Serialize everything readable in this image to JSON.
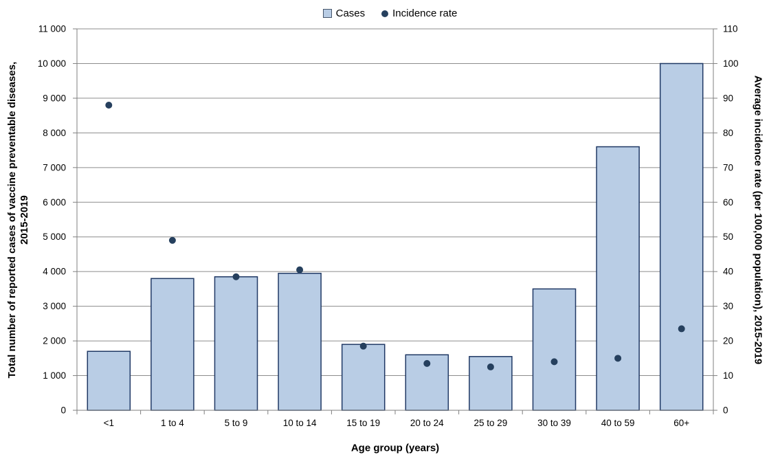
{
  "colors": {
    "background": "#ffffff",
    "bar_fill": "#b9cde5",
    "bar_border": "#1f3864",
    "dot": "#26405e",
    "gridline": "#8c8c8c",
    "axis": "#7f7f7f",
    "text": "#000000"
  },
  "chart_data": {
    "type": "bar",
    "subtype": "combo-bar-scatter-dual-axis",
    "title": "",
    "categories": [
      "<1",
      "1 to 4",
      "5 to 9",
      "10 to 14",
      "15 to 19",
      "20 to 24",
      "25 to 29",
      "30 to 39",
      "40 to 59",
      "60+"
    ],
    "series": [
      {
        "name": "Cases",
        "type": "bar",
        "axis": "left",
        "values": [
          1700,
          3800,
          3850,
          3950,
          1900,
          1600,
          1550,
          3500,
          7600,
          10000
        ]
      },
      {
        "name": "Incidence rate",
        "type": "scatter",
        "axis": "right",
        "values": [
          88,
          49,
          38.5,
          40.5,
          18.5,
          13.5,
          12.5,
          14,
          15,
          23.5
        ]
      }
    ],
    "xlabel": "Age group (years)",
    "ylabel_left": "Total number of reported cases of vaccine preventable diseases,\n2015-2019",
    "ylabel_right": "Average incidence rate (per 100,000 population), 2015-2019",
    "ylim_left": [
      0,
      11000
    ],
    "ytick_step_left": 1000,
    "ylim_right": [
      0,
      110
    ],
    "ytick_step_right": 10,
    "grid": true,
    "legend_position": "top-center"
  }
}
